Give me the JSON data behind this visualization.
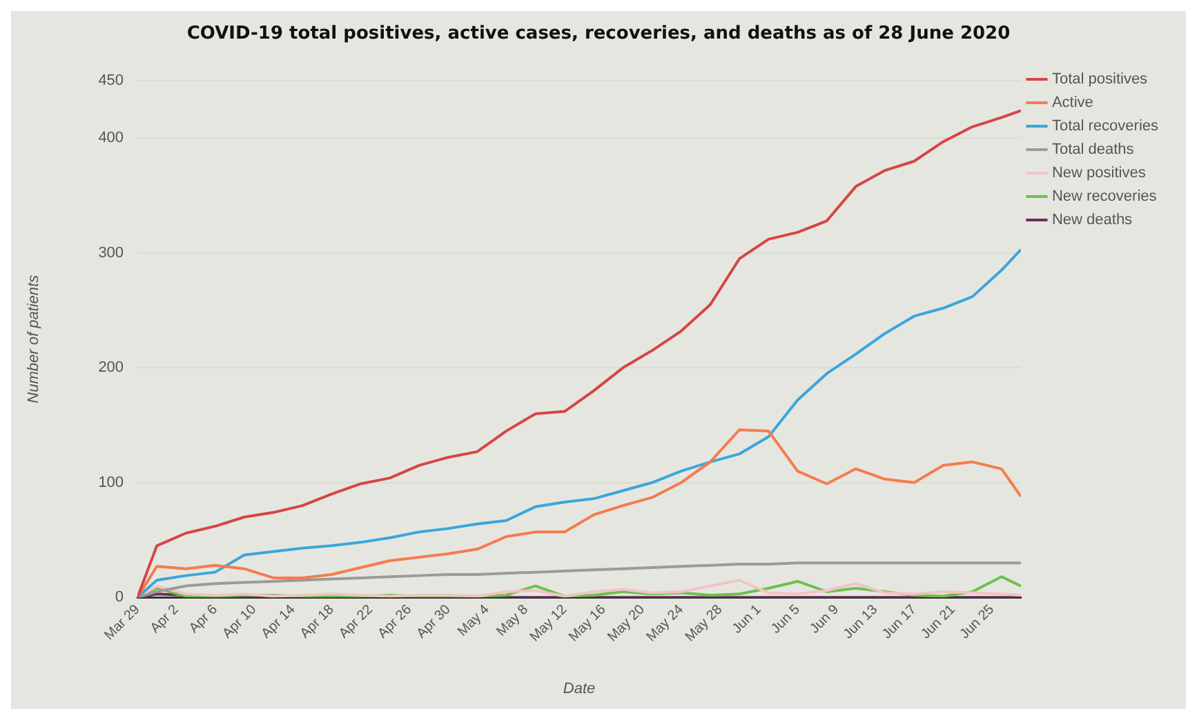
{
  "chart_data": {
    "type": "line",
    "title": "COVID-19 total positives, active cases, recoveries, and deaths as of 28 June 2020",
    "xlabel": "Date",
    "ylabel": "Number of patients",
    "x": [
      "2020-03-29",
      "2020-03-31",
      "2020-04-03",
      "2020-04-06",
      "2020-04-09",
      "2020-04-12",
      "2020-04-15",
      "2020-04-18",
      "2020-04-21",
      "2020-04-24",
      "2020-04-27",
      "2020-04-30",
      "2020-05-03",
      "2020-05-06",
      "2020-05-09",
      "2020-05-12",
      "2020-05-15",
      "2020-05-18",
      "2020-05-21",
      "2020-05-24",
      "2020-05-27",
      "2020-05-30",
      "2020-06-02",
      "2020-06-05",
      "2020-06-08",
      "2020-06-11",
      "2020-06-14",
      "2020-06-17",
      "2020-06-20",
      "2020-06-23",
      "2020-06-26",
      "2020-06-28"
    ],
    "series": [
      {
        "name": "Total positives",
        "color": "#d64545",
        "values": [
          0,
          45,
          56,
          62,
          70,
          74,
          80,
          90,
          99,
          104,
          115,
          122,
          127,
          145,
          160,
          162,
          180,
          200,
          215,
          232,
          255,
          295,
          312,
          318,
          328,
          358,
          372,
          380,
          397,
          410,
          418,
          424
        ]
      },
      {
        "name": "Active",
        "color": "#f47c4c",
        "values": [
          0,
          27,
          25,
          28,
          25,
          17,
          17,
          20,
          26,
          32,
          35,
          38,
          42,
          53,
          57,
          57,
          72,
          80,
          87,
          100,
          118,
          146,
          145,
          110,
          99,
          112,
          103,
          100,
          115,
          118,
          112,
          88
        ]
      },
      {
        "name": "Total recoveries",
        "color": "#3aa6dc",
        "values": [
          0,
          15,
          19,
          22,
          37,
          40,
          43,
          45,
          48,
          52,
          57,
          60,
          64,
          67,
          79,
          83,
          86,
          93,
          100,
          110,
          118,
          125,
          140,
          172,
          195,
          212,
          230,
          245,
          252,
          262,
          285,
          303
        ]
      },
      {
        "name": "Total deaths",
        "color": "#9a9a9a",
        "values": [
          0,
          5,
          10,
          12,
          13,
          14,
          15,
          16,
          17,
          18,
          19,
          20,
          20,
          21,
          22,
          23,
          24,
          25,
          26,
          27,
          28,
          29,
          29,
          30,
          30,
          30,
          30,
          30,
          30,
          30,
          30,
          30
        ]
      },
      {
        "name": "New positives",
        "color": "#f2c4c4",
        "values": [
          0,
          10,
          3,
          2,
          3,
          1,
          2,
          3,
          2,
          1,
          2,
          2,
          1,
          5,
          6,
          1,
          5,
          7,
          4,
          5,
          10,
          15,
          4,
          3,
          6,
          12,
          4,
          3,
          5,
          4,
          3,
          2
        ]
      },
      {
        "name": "New recoveries",
        "color": "#6cc24a",
        "values": [
          0,
          8,
          1,
          1,
          2,
          2,
          1,
          1,
          1,
          2,
          1,
          1,
          1,
          2,
          10,
          1,
          2,
          5,
          3,
          4,
          2,
          3,
          8,
          14,
          5,
          8,
          5,
          2,
          1,
          5,
          18,
          10
        ]
      },
      {
        "name": "New deaths",
        "color": "#6b2d5c",
        "values": [
          0,
          3,
          2,
          1,
          0,
          0,
          0,
          0,
          0,
          0,
          0,
          0,
          0,
          0,
          0,
          0,
          0,
          0,
          0,
          0,
          0,
          0,
          0,
          0,
          0,
          0,
          0,
          0,
          0,
          0,
          0,
          0
        ]
      }
    ],
    "xlim": [
      "2020-03-29",
      "2020-06-28"
    ],
    "xticks": [
      {
        "value": "2020-03-29",
        "label": "Mar 29"
      },
      {
        "value": "2020-04-02",
        "label": "Apr 2"
      },
      {
        "value": "2020-04-06",
        "label": "Apr 6"
      },
      {
        "value": "2020-04-10",
        "label": "Apr 10"
      },
      {
        "value": "2020-04-14",
        "label": "Apr 14"
      },
      {
        "value": "2020-04-18",
        "label": "Apr 18"
      },
      {
        "value": "2020-04-22",
        "label": "Apr 22"
      },
      {
        "value": "2020-04-26",
        "label": "Apr 26"
      },
      {
        "value": "2020-04-30",
        "label": "Apr 30"
      },
      {
        "value": "2020-05-04",
        "label": "May 4"
      },
      {
        "value": "2020-05-08",
        "label": "May 8"
      },
      {
        "value": "2020-05-12",
        "label": "May 12"
      },
      {
        "value": "2020-05-16",
        "label": "May 16"
      },
      {
        "value": "2020-05-20",
        "label": "May 20"
      },
      {
        "value": "2020-05-24",
        "label": "May 24"
      },
      {
        "value": "2020-05-28",
        "label": "May 28"
      },
      {
        "value": "2020-06-01",
        "label": "Jun 1"
      },
      {
        "value": "2020-06-05",
        "label": "Jun 5"
      },
      {
        "value": "2020-06-09",
        "label": "Jun 9"
      },
      {
        "value": "2020-06-13",
        "label": "Jun 13"
      },
      {
        "value": "2020-06-17",
        "label": "Jun 17"
      },
      {
        "value": "2020-06-21",
        "label": "Jun 21"
      },
      {
        "value": "2020-06-25",
        "label": "Jun 25"
      }
    ],
    "ylim": [
      0,
      450
    ],
    "yticks": [
      0,
      100,
      200,
      300,
      400,
      450
    ],
    "grid": "y",
    "legend": "top right",
    "marker": "none",
    "line_style": "solid"
  }
}
